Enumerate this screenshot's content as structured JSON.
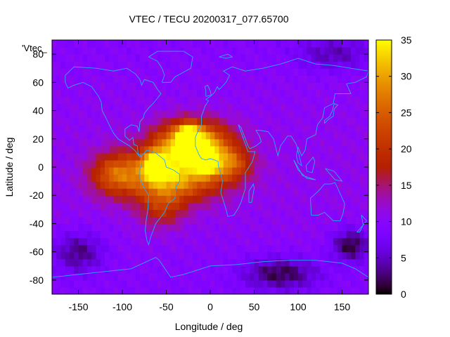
{
  "chart_data": {
    "type": "heatmap",
    "title": "VTEC / TECU 20200317_077.65700",
    "key_label": "'Vtec_",
    "xlabel": "Longitude / deg",
    "ylabel": "Latitude / deg",
    "xlim": [
      -180,
      180
    ],
    "ylim": [
      -90,
      90
    ],
    "xticks": [
      -150,
      -100,
      -50,
      0,
      50,
      100,
      150
    ],
    "yticks": [
      -80,
      -60,
      -40,
      -20,
      0,
      20,
      40,
      60,
      80
    ],
    "colorbar": {
      "min": 0,
      "max": 35,
      "ticks": [
        0,
        5,
        10,
        15,
        20,
        25,
        30,
        35
      ]
    },
    "colormap": "gnuplot-pm3d",
    "grid": false,
    "grid_step_deg": 5,
    "background_level": 10,
    "features": [
      {
        "name": "equatorial-anomaly-crest-north",
        "lon": -20,
        "lat": 18,
        "value": 34,
        "sigma_lon": 28,
        "sigma_lat": 10
      },
      {
        "name": "equatorial-anomaly-crest-south",
        "lon": -45,
        "lat": -5,
        "value": 32,
        "sigma_lon": 40,
        "sigma_lat": 12
      },
      {
        "name": "peak-brazil",
        "lon": -62,
        "lat": 2,
        "value": 35,
        "sigma_lon": 8,
        "sigma_lat": 6
      },
      {
        "name": "peak-west-africa",
        "lon": -25,
        "lat": 20,
        "value": 35,
        "sigma_lon": 8,
        "sigma_lat": 6
      },
      {
        "name": "peak-atlantic",
        "lon": -5,
        "lat": 4,
        "value": 33,
        "sigma_lon": 7,
        "sigma_lat": 5
      },
      {
        "name": "dayside-tail-east",
        "lon": 20,
        "lat": 3,
        "value": 22,
        "sigma_lon": 18,
        "sigma_lat": 8
      },
      {
        "name": "dayside-tail-west",
        "lon": -110,
        "lat": -5,
        "value": 20,
        "sigma_lon": 18,
        "sigma_lat": 10
      },
      {
        "name": "southern-extension",
        "lon": -55,
        "lat": -28,
        "value": 18,
        "sigma_lon": 18,
        "sigma_lat": 10
      },
      {
        "name": "low-south-pacific",
        "lon": -150,
        "lat": -60,
        "value": 3,
        "sigma_lon": 20,
        "sigma_lat": 10
      },
      {
        "name": "low-antarctic",
        "lon": 80,
        "lat": -75,
        "value": 2,
        "sigma_lon": 30,
        "sigma_lat": 8
      },
      {
        "name": "low-south-indian",
        "lon": 160,
        "lat": -55,
        "value": 1,
        "sigma_lon": 15,
        "sigma_lat": 8
      },
      {
        "name": "low-arctic-east",
        "lon": 140,
        "lat": 80,
        "value": 5,
        "sigma_lon": 30,
        "sigma_lat": 8
      }
    ],
    "coastlines": [
      {
        "name": "north-america",
        "points": [
          [
            -165,
            65
          ],
          [
            -155,
            71
          ],
          [
            -130,
            70
          ],
          [
            -110,
            68
          ],
          [
            -95,
            70
          ],
          [
            -85,
            66
          ],
          [
            -80,
            62
          ],
          [
            -78,
            58
          ],
          [
            -75,
            62
          ],
          [
            -65,
            60
          ],
          [
            -60,
            55
          ],
          [
            -56,
            52
          ],
          [
            -65,
            45
          ],
          [
            -70,
            42
          ],
          [
            -75,
            38
          ],
          [
            -76,
            35
          ],
          [
            -80,
            32
          ],
          [
            -81,
            25
          ],
          [
            -83,
            29
          ],
          [
            -90,
            30
          ],
          [
            -97,
            27
          ],
          [
            -97,
            22
          ],
          [
            -92,
            19
          ],
          [
            -88,
            21
          ],
          [
            -87,
            16
          ],
          [
            -83,
            15
          ],
          [
            -82,
            9
          ],
          [
            -78,
            8
          ],
          [
            -80,
            7
          ],
          [
            -86,
            12
          ],
          [
            -92,
            15
          ],
          [
            -105,
            20
          ],
          [
            -110,
            24
          ],
          [
            -115,
            30
          ],
          [
            -118,
            34
          ],
          [
            -123,
            40
          ],
          [
            -124,
            46
          ],
          [
            -127,
            50
          ],
          [
            -135,
            57
          ],
          [
            -145,
            60
          ],
          [
            -155,
            58
          ],
          [
            -162,
            56
          ],
          [
            -165,
            60
          ],
          [
            -165,
            65
          ]
        ]
      },
      {
        "name": "greenland",
        "points": [
          [
            -55,
            60
          ],
          [
            -45,
            60
          ],
          [
            -40,
            64
          ],
          [
            -22,
            70
          ],
          [
            -20,
            78
          ],
          [
            -30,
            82
          ],
          [
            -60,
            82
          ],
          [
            -70,
            78
          ],
          [
            -60,
            75
          ],
          [
            -55,
            70
          ],
          [
            -52,
            65
          ],
          [
            -55,
            60
          ]
        ]
      },
      {
        "name": "south-america",
        "points": [
          [
            -78,
            8
          ],
          [
            -72,
            12
          ],
          [
            -62,
            10
          ],
          [
            -52,
            5
          ],
          [
            -50,
            0
          ],
          [
            -42,
            -2
          ],
          [
            -35,
            -5
          ],
          [
            -35,
            -10
          ],
          [
            -39,
            -14
          ],
          [
            -40,
            -22
          ],
          [
            -48,
            -26
          ],
          [
            -52,
            -32
          ],
          [
            -57,
            -36
          ],
          [
            -62,
            -40
          ],
          [
            -65,
            -45
          ],
          [
            -68,
            -50
          ],
          [
            -70,
            -55
          ],
          [
            -72,
            -52
          ],
          [
            -74,
            -45
          ],
          [
            -73,
            -38
          ],
          [
            -71,
            -30
          ],
          [
            -70,
            -20
          ],
          [
            -75,
            -15
          ],
          [
            -80,
            -8
          ],
          [
            -80,
            -2
          ],
          [
            -78,
            2
          ],
          [
            -78,
            8
          ]
        ]
      },
      {
        "name": "eurasia-africa",
        "points": [
          [
            -10,
            36
          ],
          [
            -6,
            43
          ],
          [
            -2,
            47
          ],
          [
            -5,
            48
          ],
          [
            0,
            50
          ],
          [
            5,
            53
          ],
          [
            8,
            57
          ],
          [
            10,
            55
          ],
          [
            12,
            56
          ],
          [
            18,
            60
          ],
          [
            22,
            65
          ],
          [
            15,
            68
          ],
          [
            25,
            71
          ],
          [
            40,
            68
          ],
          [
            60,
            70
          ],
          [
            80,
            73
          ],
          [
            100,
            77
          ],
          [
            120,
            73
          ],
          [
            140,
            72
          ],
          [
            160,
            70
          ],
          [
            180,
            68
          ],
          [
            178,
            64
          ],
          [
            165,
            60
          ],
          [
            155,
            59
          ],
          [
            160,
            52
          ],
          [
            142,
            52
          ],
          [
            140,
            45
          ],
          [
            130,
            42
          ],
          [
            128,
            35
          ],
          [
            122,
            30
          ],
          [
            120,
            23
          ],
          [
            110,
            20
          ],
          [
            108,
            12
          ],
          [
            104,
            8
          ],
          [
            100,
            14
          ],
          [
            98,
            8
          ],
          [
            100,
            3
          ],
          [
            104,
            1
          ],
          [
            98,
            16
          ],
          [
            92,
            22
          ],
          [
            88,
            22
          ],
          [
            80,
            15
          ],
          [
            77,
            8
          ],
          [
            72,
            20
          ],
          [
            66,
            25
          ],
          [
            57,
            26
          ],
          [
            52,
            26
          ],
          [
            56,
            22
          ],
          [
            58,
            18
          ],
          [
            52,
            15
          ],
          [
            45,
            13
          ],
          [
            43,
            15
          ],
          [
            35,
            28
          ],
          [
            32,
            30
          ],
          [
            43,
            11
          ],
          [
            51,
            11
          ],
          [
            48,
            4
          ],
          [
            40,
            -4
          ],
          [
            40,
            -15
          ],
          [
            35,
            -25
          ],
          [
            32,
            -29
          ],
          [
            27,
            -34
          ],
          [
            20,
            -35
          ],
          [
            18,
            -30
          ],
          [
            12,
            -18
          ],
          [
            14,
            -10
          ],
          [
            12,
            -5
          ],
          [
            9,
            1
          ],
          [
            9,
            4
          ],
          [
            5,
            5
          ],
          [
            0,
            6
          ],
          [
            -5,
            5
          ],
          [
            -10,
            6
          ],
          [
            -13,
            9
          ],
          [
            -17,
            15
          ],
          [
            -17,
            21
          ],
          [
            -13,
            27
          ],
          [
            -10,
            30
          ],
          [
            -10,
            36
          ]
        ]
      },
      {
        "name": "australia",
        "points": [
          [
            114,
            -22
          ],
          [
            115,
            -34
          ],
          [
            123,
            -34
          ],
          [
            130,
            -32
          ],
          [
            135,
            -35
          ],
          [
            140,
            -38
          ],
          [
            148,
            -38
          ],
          [
            151,
            -33
          ],
          [
            153,
            -26
          ],
          [
            145,
            -15
          ],
          [
            142,
            -11
          ],
          [
            137,
            -12
          ],
          [
            130,
            -12
          ],
          [
            123,
            -17
          ],
          [
            114,
            -22
          ]
        ]
      },
      {
        "name": "antarctica",
        "points": [
          [
            -180,
            -78
          ],
          [
            -150,
            -76
          ],
          [
            -120,
            -74
          ],
          [
            -90,
            -72
          ],
          [
            -62,
            -64
          ],
          [
            -58,
            -66
          ],
          [
            -45,
            -78
          ],
          [
            -30,
            -76
          ],
          [
            0,
            -70
          ],
          [
            30,
            -69
          ],
          [
            60,
            -67
          ],
          [
            90,
            -66
          ],
          [
            120,
            -66
          ],
          [
            150,
            -68
          ],
          [
            165,
            -72
          ],
          [
            180,
            -78
          ]
        ]
      },
      {
        "name": "madagascar",
        "points": [
          [
            44,
            -25
          ],
          [
            47,
            -25
          ],
          [
            50,
            -15
          ],
          [
            49,
            -12
          ],
          [
            44,
            -17
          ],
          [
            44,
            -25
          ]
        ]
      },
      {
        "name": "japan",
        "points": [
          [
            130,
            31
          ],
          [
            135,
            34
          ],
          [
            140,
            36
          ],
          [
            141,
            41
          ],
          [
            145,
            44
          ],
          [
            141,
            45
          ],
          [
            139,
            40
          ],
          [
            136,
            36
          ],
          [
            130,
            33
          ],
          [
            130,
            31
          ]
        ]
      },
      {
        "name": "british-isles",
        "points": [
          [
            -5,
            50
          ],
          [
            1,
            51
          ],
          [
            0,
            54
          ],
          [
            -3,
            58
          ],
          [
            -6,
            57
          ],
          [
            -5,
            54
          ],
          [
            -5,
            50
          ]
        ]
      },
      {
        "name": "new-zealand",
        "points": [
          [
            172,
            -34
          ],
          [
            178,
            -38
          ],
          [
            174,
            -41
          ],
          [
            167,
            -46
          ],
          [
            170,
            -46
          ],
          [
            174,
            -41
          ],
          [
            172,
            -34
          ]
        ]
      },
      {
        "name": "indonesia",
        "points": [
          [
            95,
            5
          ],
          [
            105,
            -6
          ],
          [
            115,
            -8
          ],
          [
            120,
            -9
          ],
          [
            110,
            -8
          ],
          [
            100,
            -2
          ],
          [
            95,
            5
          ]
        ]
      },
      {
        "name": "borneo",
        "points": [
          [
            109,
            1
          ],
          [
            117,
            7
          ],
          [
            119,
            4
          ],
          [
            116,
            -4
          ],
          [
            110,
            -3
          ],
          [
            109,
            1
          ]
        ]
      },
      {
        "name": "new-guinea",
        "points": [
          [
            131,
            -1
          ],
          [
            141,
            -3
          ],
          [
            150,
            -10
          ],
          [
            142,
            -9
          ],
          [
            135,
            -4
          ],
          [
            131,
            -1
          ]
        ]
      },
      {
        "name": "svalbard-arctic-islands",
        "points": [
          [
            10,
            78
          ],
          [
            20,
            80
          ],
          [
            25,
            78
          ],
          [
            18,
            77
          ],
          [
            10,
            78
          ]
        ]
      }
    ]
  }
}
